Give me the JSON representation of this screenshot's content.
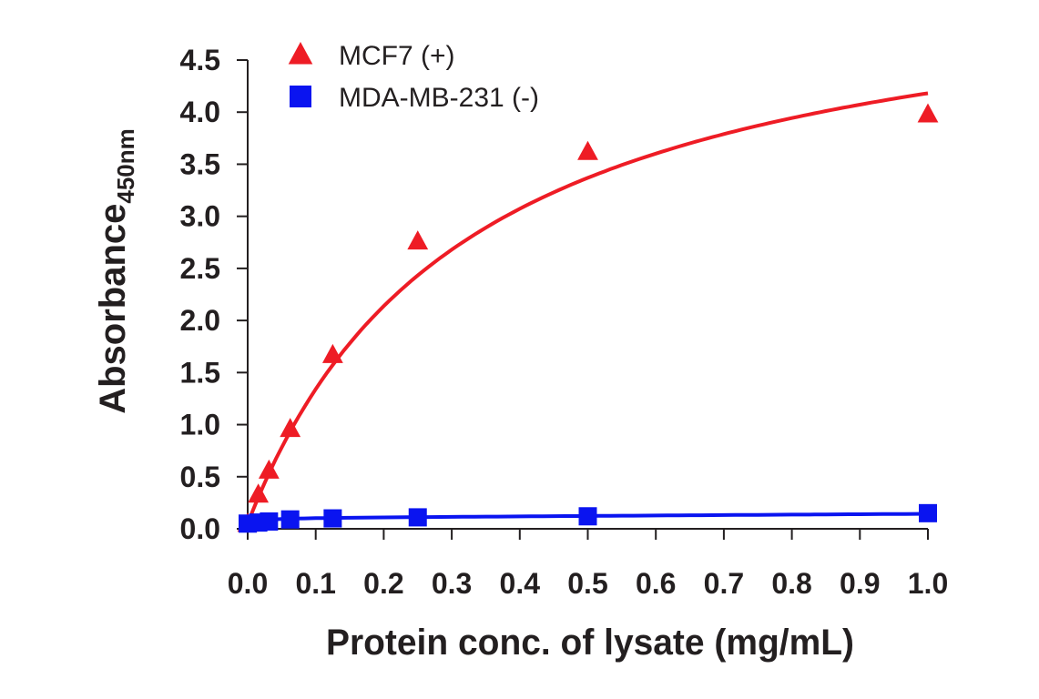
{
  "chart_data": {
    "type": "scatter",
    "title": "",
    "xlabel": "Protein conc. of lysate (mg/mL)",
    "ylabel": "Absorbance",
    "ylabel_sub": "450nm",
    "xlim": [
      0,
      1.0
    ],
    "ylim": [
      0,
      4.5
    ],
    "xticks": [
      "0.0",
      "0.1",
      "0.2",
      "0.3",
      "0.4",
      "0.5",
      "0.6",
      "0.7",
      "0.8",
      "0.9",
      "1.0"
    ],
    "yticks": [
      "0.0",
      "0.5",
      "1.0",
      "1.5",
      "2.0",
      "2.5",
      "3.0",
      "3.5",
      "4.0",
      "4.5"
    ],
    "grid": false,
    "legend_position": "top-left",
    "series": [
      {
        "name": "MCF7 (+)",
        "marker": "triangle",
        "color": "#ee1c25",
        "x": [
          0,
          0.0156,
          0.03125,
          0.0625,
          0.125,
          0.25,
          0.5,
          1.0
        ],
        "y": [
          0.05,
          0.33,
          0.56,
          0.96,
          1.67,
          2.76,
          3.62,
          3.98
        ],
        "fit": "saturation"
      },
      {
        "name": "MDA-MB-231 (-)",
        "marker": "square",
        "color": "#0a14f0",
        "x": [
          0,
          0.0156,
          0.03125,
          0.0625,
          0.125,
          0.25,
          0.5,
          1.0
        ],
        "y": [
          0.05,
          0.06,
          0.07,
          0.09,
          0.1,
          0.11,
          0.12,
          0.15
        ],
        "fit": "flat"
      }
    ]
  }
}
